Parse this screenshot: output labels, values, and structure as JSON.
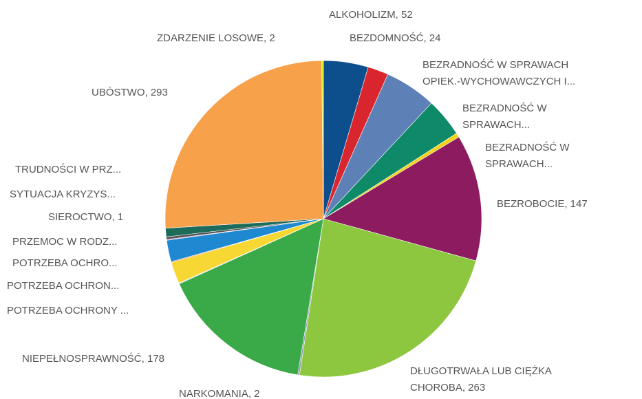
{
  "chart_data": {
    "type": "pie",
    "categories": [
      "ALKOHOLIZM, 52",
      "BEZDOMNOŚĆ, 24",
      "BEZRADNOŚĆ W SPRAWACH\nOPIEK.-WYCHOWAWCZYCH I...",
      "BEZRADNOŚĆ W\nSPRAWACH...",
      "BEZRADNOŚĆ W\nSPRAWACH...",
      "BEZROBOCIE, 147",
      "DŁUGOTRWAŁA LUB CIĘŻKA\nCHOROBA, 263",
      "NARKOMANIA, 2",
      "NIEPEŁNOSPRAWNOŚĆ, 178",
      "POTRZEBA OCHRONY ...",
      "POTRZEBA OCHRON...",
      "POTRZEBA OCHRO...",
      "PRZEMOC W RODZ...",
      "SIEROCTWO, 1",
      "SYTUACJA KRYZYS...",
      "TRUDNOŚCI W PRZ...",
      "UBÓSTWO, 293",
      "ZDARZENIE LOSOWE, 2"
    ],
    "values": [
      52,
      24,
      60,
      45,
      5,
      147,
      263,
      2,
      178,
      1,
      25,
      1,
      25,
      1,
      3,
      10,
      293,
      2
    ],
    "colors": [
      "#0c4f8c",
      "#d9262e",
      "#5d80b6",
      "#0f8a68",
      "#f2d21b",
      "#8c1b5f",
      "#8dc63f",
      "#8a9bb0",
      "#3aa948",
      "#dcdcdc",
      "#f7d733",
      "#c8503c",
      "#1e88d0",
      "#9b59b6",
      "#555555",
      "#1d6b5a",
      "#f7a14a",
      "#e6e619"
    ]
  }
}
